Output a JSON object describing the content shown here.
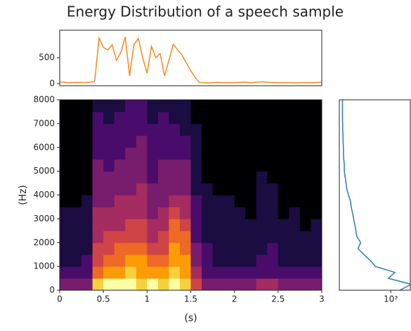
{
  "title": "Energy Distribution of a speech sample",
  "chart_data": [
    {
      "type": "line",
      "color": "#f28a1e",
      "x": [
        0,
        0.1,
        0.2,
        0.3,
        0.4,
        0.45,
        0.5,
        0.55,
        0.6,
        0.65,
        0.7,
        0.75,
        0.8,
        0.85,
        0.9,
        0.95,
        1.0,
        1.05,
        1.1,
        1.15,
        1.2,
        1.25,
        1.3,
        1.35,
        1.4,
        1.45,
        1.5,
        1.55,
        1.6,
        1.7,
        1.8,
        1.9,
        2.0,
        2.1,
        2.2,
        2.3,
        2.4,
        2.5,
        2.6,
        2.7,
        2.8,
        2.9,
        3.0
      ],
      "values": [
        30,
        20,
        25,
        20,
        40,
        880,
        700,
        650,
        750,
        450,
        600,
        900,
        150,
        750,
        870,
        500,
        200,
        720,
        500,
        580,
        150,
        450,
        760,
        650,
        550,
        400,
        250,
        120,
        20,
        15,
        25,
        20,
        20,
        30,
        20,
        35,
        25,
        20,
        20,
        15,
        20,
        20,
        30
      ],
      "xlim": [
        0,
        3
      ],
      "ylim": [
        -40,
        1030
      ],
      "yticks": [
        0,
        500
      ]
    },
    {
      "type": "heatmap",
      "xlabel": "(s)",
      "ylabel": "(Hz)",
      "xlim": [
        0,
        3
      ],
      "ylim": [
        0,
        8000
      ],
      "xticks": [
        0,
        0.5,
        1,
        1.5,
        2,
        2.5,
        3
      ],
      "yticks": [
        0,
        1000,
        2000,
        3000,
        4000,
        5000,
        6000,
        7000,
        8000
      ],
      "colormap": [
        "#000004",
        "#1b0c41",
        "#4a0c6b",
        "#781c6d",
        "#a52c60",
        "#cf4446",
        "#ed6925",
        "#fb9b06",
        "#f7d13d",
        "#fcffa4"
      ],
      "z": [
        [
          3,
          2,
          1,
          1,
          1,
          1,
          1,
          0,
          0,
          0,
          0,
          0,
          0,
          0,
          0,
          0
        ],
        [
          3,
          2,
          1,
          1,
          1,
          1,
          1,
          0,
          0,
          0,
          0,
          0,
          0,
          0,
          0,
          0
        ],
        [
          3,
          2,
          2,
          1,
          1,
          1,
          1,
          1,
          0,
          0,
          0,
          0,
          0,
          0,
          0,
          0
        ],
        [
          8,
          6,
          5,
          5,
          4,
          4,
          4,
          3,
          3,
          3,
          3,
          2,
          2,
          2,
          2,
          1
        ],
        [
          9,
          7,
          6,
          5,
          5,
          4,
          4,
          3,
          3,
          3,
          2,
          2,
          2,
          2,
          1,
          1
        ],
        [
          9,
          7,
          6,
          6,
          5,
          4,
          4,
          4,
          3,
          3,
          3,
          2,
          2,
          2,
          2,
          1
        ],
        [
          9,
          8,
          7,
          6,
          5,
          5,
          4,
          4,
          3,
          3,
          3,
          3,
          2,
          2,
          2,
          2
        ],
        [
          8,
          7,
          7,
          6,
          5,
          5,
          4,
          4,
          4,
          3,
          3,
          3,
          3,
          2,
          2,
          2
        ],
        [
          9,
          7,
          6,
          5,
          4,
          4,
          3,
          3,
          3,
          2,
          2,
          2,
          2,
          2,
          1,
          1
        ],
        [
          8,
          7,
          6,
          5,
          5,
          4,
          4,
          3,
          3,
          3,
          3,
          2,
          2,
          2,
          2,
          1
        ],
        [
          9,
          8,
          7,
          7,
          6,
          6,
          5,
          4,
          3,
          3,
          3,
          2,
          2,
          2,
          1,
          1
        ],
        [
          8,
          7,
          7,
          6,
          6,
          5,
          4,
          4,
          3,
          3,
          3,
          2,
          2,
          1,
          1,
          1
        ],
        [
          5,
          4,
          3,
          3,
          2,
          2,
          2,
          2,
          1,
          1,
          1,
          1,
          1,
          1,
          0,
          0
        ],
        [
          3,
          2,
          2,
          2,
          1,
          1,
          1,
          1,
          1,
          0,
          0,
          0,
          0,
          0,
          0,
          0
        ],
        [
          3,
          2,
          1,
          1,
          1,
          1,
          1,
          1,
          0,
          0,
          0,
          0,
          0,
          0,
          0,
          0
        ],
        [
          3,
          2,
          1,
          1,
          1,
          1,
          1,
          1,
          0,
          0,
          0,
          0,
          0,
          0,
          0,
          0
        ],
        [
          3,
          2,
          1,
          1,
          1,
          1,
          1,
          0,
          0,
          0,
          0,
          0,
          0,
          0,
          0,
          0
        ],
        [
          3,
          2,
          1,
          1,
          1,
          1,
          0,
          0,
          0,
          0,
          0,
          0,
          0,
          0,
          0,
          0
        ],
        [
          4,
          2,
          2,
          1,
          1,
          1,
          1,
          1,
          1,
          1,
          0,
          0,
          0,
          0,
          0,
          0
        ],
        [
          4,
          2,
          2,
          2,
          1,
          1,
          1,
          1,
          1,
          0,
          0,
          0,
          0,
          0,
          0,
          0
        ],
        [
          3,
          2,
          1,
          1,
          1,
          1,
          0,
          0,
          0,
          0,
          0,
          0,
          0,
          0,
          0,
          0
        ],
        [
          3,
          2,
          1,
          1,
          1,
          1,
          1,
          0,
          0,
          0,
          0,
          0,
          0,
          0,
          0,
          0
        ],
        [
          3,
          2,
          1,
          1,
          1,
          0,
          0,
          0,
          0,
          0,
          0,
          0,
          0,
          0,
          0,
          0
        ],
        [
          3,
          2,
          1,
          1,
          1,
          1,
          0,
          0,
          0,
          0,
          0,
          0,
          0,
          0,
          0,
          0
        ]
      ]
    },
    {
      "type": "hline",
      "color": "#2b7bba",
      "xscale": "log",
      "y": [
        0,
        250,
        500,
        750,
        1000,
        1250,
        1500,
        1750,
        2000,
        2250,
        2500,
        2750,
        3000,
        3250,
        3500,
        3750,
        4000,
        4250,
        4500,
        4750,
        5000,
        5250,
        5500,
        5750,
        6000,
        6250,
        6500,
        6750,
        7000,
        7250,
        7500,
        7750,
        8000
      ],
      "values": [
        1500,
        2500,
        900,
        1200,
        500,
        400,
        300,
        230,
        260,
        220,
        210,
        200,
        190,
        180,
        170,
        165,
        150,
        140,
        135,
        130,
        125,
        125,
        122,
        120,
        120,
        118,
        118,
        116,
        116,
        115,
        115,
        115,
        115
      ],
      "xlim": [
        100,
        2400
      ],
      "ylim": [
        0,
        8000
      ],
      "xticks": [
        {
          "value": 1000,
          "label": "10³"
        }
      ]
    }
  ]
}
